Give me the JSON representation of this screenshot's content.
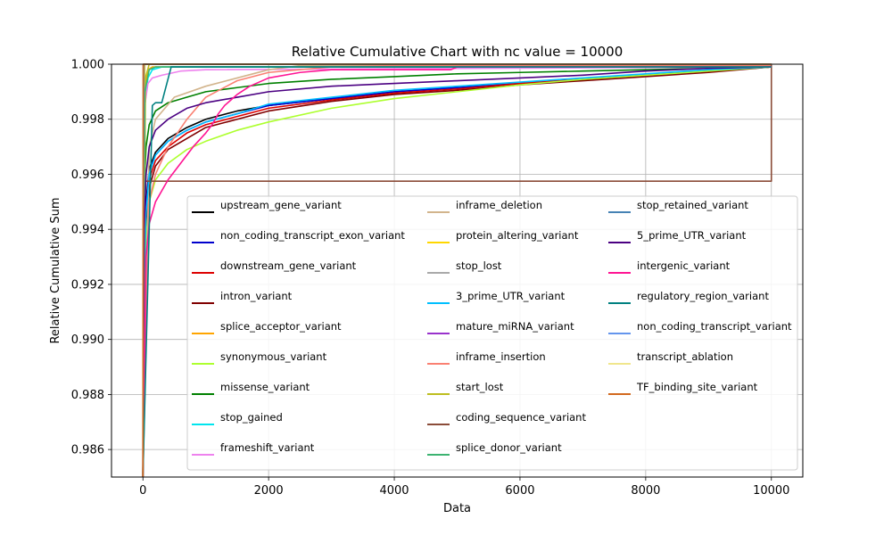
{
  "chart_data": {
    "type": "line",
    "title": "Relative Cumulative Chart with nc value = 10000",
    "xlabel": "Data",
    "ylabel": "Relative Cumulative Sum",
    "xlim": [
      -500,
      10500
    ],
    "ylim": [
      0.985,
      1.0
    ],
    "xticks": [
      0,
      2000,
      4000,
      6000,
      8000,
      10000
    ],
    "xtick_labels": [
      "0",
      "2000",
      "4000",
      "6000",
      "8000",
      "10000"
    ],
    "yticks": [
      0.986,
      0.988,
      0.99,
      0.992,
      0.994,
      0.996,
      0.998,
      1.0
    ],
    "ytick_labels": [
      "0.986",
      "0.988",
      "0.990",
      "0.992",
      "0.994",
      "0.996",
      "0.998",
      "1.000"
    ],
    "grid": true,
    "legend_position": "lower-right, inside, 3 columns",
    "series": [
      {
        "name": "upstream_gene_variant",
        "color": "#000000",
        "x": [
          0,
          20,
          50,
          100,
          200,
          400,
          700,
          1000,
          1500,
          2000,
          3000,
          4000,
          5000,
          6000,
          7000,
          8000,
          9000,
          10000
        ],
        "y": [
          0.985,
          0.9925,
          0.995,
          0.9962,
          0.9968,
          0.9973,
          0.9977,
          0.998,
          0.9983,
          0.9985,
          0.99875,
          0.999,
          0.99915,
          0.9993,
          0.99945,
          0.9996,
          0.99975,
          0.9999
        ]
      },
      {
        "name": "non_coding_transcript_exon_variant",
        "color": "#0000cd",
        "x": [
          0,
          20,
          50,
          100,
          200,
          400,
          700,
          1000,
          1500,
          2000,
          3000,
          4000,
          5000,
          6000,
          7000,
          8000,
          9000,
          10000
        ],
        "y": [
          0.985,
          0.9922,
          0.9948,
          0.9961,
          0.9967,
          0.9972,
          0.9976,
          0.9979,
          0.9982,
          0.9985,
          0.99875,
          0.999,
          0.99915,
          0.9993,
          0.99945,
          0.9996,
          0.99975,
          0.9999
        ]
      },
      {
        "name": "downstream_gene_variant",
        "color": "#dd0000",
        "x": [
          0,
          20,
          50,
          100,
          200,
          400,
          700,
          1000,
          1500,
          2000,
          3000,
          4000,
          5000,
          6000,
          7000,
          8000,
          9000,
          10000
        ],
        "y": [
          0.985,
          0.9915,
          0.9944,
          0.9958,
          0.9965,
          0.997,
          0.9975,
          0.9978,
          0.9981,
          0.9984,
          0.9987,
          0.99895,
          0.9991,
          0.9993,
          0.99945,
          0.9996,
          0.99975,
          0.9999
        ]
      },
      {
        "name": "intron_variant",
        "color": "#800000",
        "x": [
          0,
          20,
          50,
          100,
          200,
          400,
          700,
          1000,
          1500,
          2000,
          3000,
          4000,
          5000,
          6000,
          7000,
          8000,
          9000,
          10000
        ],
        "y": [
          0.985,
          0.991,
          0.994,
          0.9955,
          0.9963,
          0.9969,
          0.9973,
          0.9977,
          0.998,
          0.9983,
          0.99865,
          0.9989,
          0.99905,
          0.99925,
          0.9994,
          0.99955,
          0.9997,
          0.9999
        ]
      },
      {
        "name": "splice_acceptor_variant",
        "color": "#ffa500",
        "x": [
          0,
          30,
          80,
          150,
          10000
        ],
        "y": [
          0.985,
          0.999,
          0.9998,
          0.9999,
          0.9999
        ]
      },
      {
        "name": "synonymous_variant",
        "color": "#adff2f",
        "x": [
          0,
          20,
          50,
          100,
          200,
          400,
          700,
          1000,
          1500,
          2000,
          3000,
          4000,
          5000,
          6000,
          7000,
          8000,
          9000,
          10000
        ],
        "y": [
          0.985,
          0.9915,
          0.9937,
          0.995,
          0.9958,
          0.9964,
          0.9969,
          0.9972,
          0.9976,
          0.9979,
          0.9984,
          0.99875,
          0.999,
          0.99925,
          0.99945,
          0.9996,
          0.99975,
          0.9999
        ]
      },
      {
        "name": "missense_variant",
        "color": "#008000",
        "x": [
          0,
          20,
          50,
          100,
          200,
          400,
          700,
          1000,
          1500,
          2000,
          3000,
          4000,
          5000,
          6000,
          7000,
          8000,
          9000,
          10000
        ],
        "y": [
          0.985,
          0.9955,
          0.997,
          0.9978,
          0.9983,
          0.9986,
          0.9988,
          0.999,
          0.99915,
          0.9993,
          0.99945,
          0.99955,
          0.99965,
          0.9997,
          0.99975,
          0.9998,
          0.99985,
          0.9999
        ]
      },
      {
        "name": "stop_gained",
        "color": "#00e5ee",
        "x": [
          0,
          30,
          80,
          150,
          300,
          10000
        ],
        "y": [
          0.985,
          0.9985,
          0.9995,
          0.9998,
          0.9999,
          0.9999
        ]
      },
      {
        "name": "frameshift_variant",
        "color": "#ee82ee",
        "x": [
          0,
          30,
          80,
          150,
          300,
          600,
          1000,
          10000
        ],
        "y": [
          0.985,
          0.9985,
          0.9993,
          0.9995,
          0.9996,
          0.99975,
          0.9998,
          0.9999
        ]
      },
      {
        "name": "inframe_deletion",
        "color": "#d2b48c",
        "x": [
          0,
          100,
          200,
          500,
          1000,
          1500,
          2000,
          2500,
          3000,
          10000
        ],
        "y": [
          0.985,
          0.997,
          0.998,
          0.9988,
          0.9992,
          0.9995,
          0.9998,
          0.99995,
          0.99995,
          0.99995
        ]
      },
      {
        "name": "protein_altering_variant",
        "color": "#ffd700",
        "x": [
          0,
          30,
          10000
        ],
        "y": [
          0.985,
          1.0,
          1.0
        ]
      },
      {
        "name": "stop_lost",
        "color": "#a9a9a9",
        "x": [
          0,
          20,
          10000
        ],
        "y": [
          0.985,
          1.0,
          1.0
        ]
      },
      {
        "name": "3_prime_UTR_variant",
        "color": "#00bfff",
        "x": [
          0,
          20,
          50,
          100,
          200,
          400,
          700,
          1000,
          1500,
          2000,
          3000,
          4000,
          5000,
          6000,
          7000,
          8000,
          9000,
          10000
        ],
        "y": [
          0.985,
          0.992,
          0.9946,
          0.996,
          0.9967,
          0.9972,
          0.9976,
          0.9979,
          0.9982,
          0.99855,
          0.9988,
          0.99905,
          0.9992,
          0.99935,
          0.9995,
          0.99965,
          0.9998,
          0.9999
        ]
      },
      {
        "name": "mature_miRNA_variant",
        "color": "#9932cc",
        "x": [
          0,
          10,
          10000
        ],
        "y": [
          0.985,
          1.0,
          1.0
        ]
      },
      {
        "name": "inframe_insertion",
        "color": "#fa8072",
        "x": [
          0,
          100,
          200,
          400,
          700,
          1000,
          1500,
          2000,
          3000,
          4000,
          10000
        ],
        "y": [
          0.985,
          0.995,
          0.996,
          0.997,
          0.998,
          0.9988,
          0.9994,
          0.9997,
          0.9999,
          0.99995,
          0.99995
        ]
      },
      {
        "name": "start_lost",
        "color": "#bdbd1f",
        "x": [
          0,
          40,
          100,
          10000
        ],
        "y": [
          0.985,
          0.9995,
          1.0,
          1.0
        ]
      },
      {
        "name": "coding_sequence_variant",
        "color": "#8b4c39",
        "x": [
          0,
          10,
          10000,
          10000,
          10000
        ],
        "y": [
          0.985,
          0.99575,
          0.99575,
          1.0,
          0.99575
        ]
      },
      {
        "name": "splice_donor_variant",
        "color": "#3cb371",
        "x": [
          0,
          30,
          100,
          200,
          10000
        ],
        "y": [
          0.985,
          0.999,
          0.9998,
          0.9999,
          0.9999
        ]
      },
      {
        "name": "stop_retained_variant",
        "color": "#4682b4",
        "x": [
          0,
          15,
          10000
        ],
        "y": [
          0.985,
          1.0,
          1.0
        ]
      },
      {
        "name": "5_prime_UTR_variant",
        "color": "#4b0082",
        "x": [
          0,
          20,
          50,
          100,
          200,
          400,
          700,
          1000,
          1500,
          2000,
          3000,
          4000,
          5000,
          6000,
          7000,
          8000,
          9000,
          10000
        ],
        "y": [
          0.985,
          0.994,
          0.996,
          0.997,
          0.9976,
          0.998,
          0.9984,
          0.9986,
          0.9988,
          0.999,
          0.9992,
          0.9993,
          0.9994,
          0.9995,
          0.9996,
          0.99975,
          0.99985,
          0.9999
        ]
      },
      {
        "name": "intergenic_variant",
        "color": "#ff1493",
        "x": [
          0,
          50,
          100,
          200,
          400,
          600,
          800,
          1000,
          1100,
          1200,
          1300,
          1400,
          1500,
          1700,
          2000,
          2500,
          3000,
          4000,
          4900,
          5000,
          10000
        ],
        "y": [
          0.985,
          0.993,
          0.9942,
          0.995,
          0.9958,
          0.9964,
          0.997,
          0.9975,
          0.9978,
          0.9982,
          0.9985,
          0.9987,
          0.9989,
          0.9992,
          0.9995,
          0.9997,
          0.9998,
          0.9998,
          0.9998,
          0.9999,
          0.9999
        ]
      },
      {
        "name": "regulatory_region_variant",
        "color": "#008080",
        "x": [
          0,
          150,
          200,
          300,
          450,
          10000
        ],
        "y": [
          0.985,
          0.9985,
          0.9986,
          0.9986,
          0.9999,
          0.9999
        ]
      },
      {
        "name": "non_coding_transcript_variant",
        "color": "#6495ed",
        "x": [
          0,
          5,
          10000
        ],
        "y": [
          0.985,
          1.0,
          1.0
        ]
      },
      {
        "name": "transcript_ablation",
        "color": "#f0e68c",
        "x": [
          0,
          5,
          10000
        ],
        "y": [
          0.985,
          1.0,
          1.0
        ]
      },
      {
        "name": "TF_binding_site_variant",
        "color": "#d2691e",
        "x": [
          0,
          5,
          10000
        ],
        "y": [
          0.985,
          1.0,
          1.0
        ]
      }
    ]
  }
}
